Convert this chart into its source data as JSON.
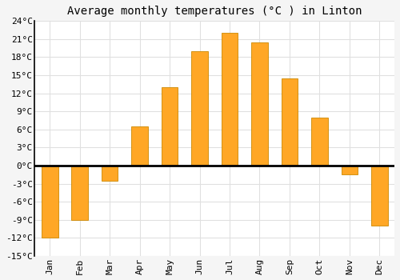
{
  "title": "Average monthly temperatures (°C ) in Linton",
  "months": [
    "Jan",
    "Feb",
    "Mar",
    "Apr",
    "May",
    "Jun",
    "Jul",
    "Aug",
    "Sep",
    "Oct",
    "Nov",
    "Dec"
  ],
  "values": [
    -12,
    -9,
    -2.5,
    6.5,
    13,
    19,
    22,
    20.5,
    14.5,
    8,
    -1.5,
    -10
  ],
  "bar_color": "#FFA726",
  "bar_edge_color": "#CC8800",
  "ylim": [
    -15,
    24
  ],
  "yticks": [
    -15,
    -12,
    -9,
    -6,
    -3,
    0,
    3,
    6,
    9,
    12,
    15,
    18,
    21,
    24
  ],
  "ytick_labels": [
    "-15°C",
    "-12°C",
    "-9°C",
    "-6°C",
    "-3°C",
    "0°C",
    "3°C",
    "6°C",
    "9°C",
    "12°C",
    "15°C",
    "18°C",
    "21°C",
    "24°C"
  ],
  "plot_bg_color": "#ffffff",
  "fig_bg_color": "#f5f5f5",
  "grid_color": "#e0e0e0",
  "zero_line_color": "#000000",
  "left_spine_color": "#000000",
  "title_fontsize": 10,
  "tick_fontsize": 8,
  "bar_width": 0.55
}
